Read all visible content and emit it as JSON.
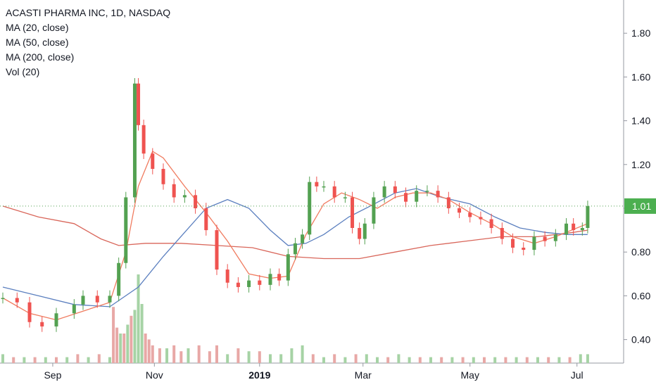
{
  "chart_data": {
    "type": "candlestick",
    "title": "ACASTI PHARMA INC, 1D, NASDAQ",
    "legend": [
      "MA (20, close)",
      "MA (50, close)",
      "MA (200, close)",
      "Vol (20)"
    ],
    "x_tick_labels": [
      "Sep",
      "Nov",
      "2019",
      "Mar",
      "May",
      "Jul"
    ],
    "y_tick_labels": [
      "1.80",
      "1.60",
      "1.40",
      "1.20",
      "1.00",
      "0.80",
      "0.60",
      "0.40"
    ],
    "y_ticks": [
      1.8,
      1.6,
      1.4,
      1.2,
      1.0,
      0.8,
      0.6,
      0.4
    ],
    "ylim": [
      0.3,
      1.95
    ],
    "last_price": "1.01",
    "last_price_value": 1.01,
    "grid": false,
    "legend_placement": "top-left",
    "colors": {
      "up": "#53a151",
      "down": "#ef5350",
      "ma20": "#f07b5f",
      "ma50": "#5b7fbf",
      "ma200": "#d9665a",
      "vol_up": "#a6d3a5",
      "vol_down": "#e8a8a6",
      "price_label_bg": "#4caf50"
    },
    "price_series_close": [
      [
        0,
        0.59
      ],
      [
        8,
        0.57
      ],
      [
        15,
        0.48
      ],
      [
        22,
        0.46
      ],
      [
        30,
        0.52
      ],
      [
        40,
        0.56
      ],
      [
        45,
        0.6
      ],
      [
        53,
        0.57
      ],
      [
        60,
        0.6
      ],
      [
        65,
        0.75
      ],
      [
        69,
        1.05
      ],
      [
        74,
        1.57
      ],
      [
        76,
        1.38
      ],
      [
        79,
        1.25
      ],
      [
        84,
        1.18
      ],
      [
        90,
        1.11
      ],
      [
        96,
        1.05
      ],
      [
        102,
        1.06
      ],
      [
        108,
        1.0
      ],
      [
        114,
        0.9
      ],
      [
        120,
        0.72
      ],
      [
        126,
        0.66
      ],
      [
        132,
        0.64
      ],
      [
        138,
        0.67
      ],
      [
        144,
        0.65
      ],
      [
        150,
        0.7
      ],
      [
        155,
        0.67
      ],
      [
        160,
        0.79
      ],
      [
        164,
        0.84
      ],
      [
        168,
        0.88
      ],
      [
        172,
        1.12
      ],
      [
        176,
        1.1
      ],
      [
        180,
        1.1
      ],
      [
        186,
        1.05
      ],
      [
        192,
        1.05
      ],
      [
        196,
        0.91
      ],
      [
        200,
        0.86
      ],
      [
        203,
        0.93
      ],
      [
        208,
        1.05
      ],
      [
        214,
        1.1
      ],
      [
        220,
        1.07
      ],
      [
        226,
        1.03
      ],
      [
        232,
        1.08
      ],
      [
        238,
        1.08
      ],
      [
        244,
        1.05
      ],
      [
        250,
        1.0
      ],
      [
        256,
        0.98
      ],
      [
        262,
        0.96
      ],
      [
        268,
        0.95
      ],
      [
        274,
        0.91
      ],
      [
        280,
        0.86
      ],
      [
        286,
        0.82
      ],
      [
        292,
        0.81
      ],
      [
        298,
        0.87
      ],
      [
        304,
        0.85
      ],
      [
        310,
        0.88
      ],
      [
        316,
        0.93
      ],
      [
        320,
        0.9
      ],
      [
        325,
        0.91
      ],
      [
        328,
        1.01
      ]
    ],
    "ma20": [
      [
        0,
        0.59
      ],
      [
        15,
        0.52
      ],
      [
        30,
        0.49
      ],
      [
        45,
        0.53
      ],
      [
        60,
        0.57
      ],
      [
        69,
        0.8
      ],
      [
        76,
        1.1
      ],
      [
        84,
        1.26
      ],
      [
        90,
        1.23
      ],
      [
        102,
        1.1
      ],
      [
        114,
        0.98
      ],
      [
        126,
        0.85
      ],
      [
        138,
        0.7
      ],
      [
        150,
        0.68
      ],
      [
        160,
        0.69
      ],
      [
        170,
        0.88
      ],
      [
        180,
        1.02
      ],
      [
        190,
        1.07
      ],
      [
        200,
        1.04
      ],
      [
        210,
        1.0
      ],
      [
        220,
        1.05
      ],
      [
        230,
        1.07
      ],
      [
        240,
        1.07
      ],
      [
        250,
        1.04
      ],
      [
        262,
        0.98
      ],
      [
        274,
        0.93
      ],
      [
        286,
        0.87
      ],
      [
        298,
        0.84
      ],
      [
        310,
        0.87
      ],
      [
        328,
        0.93
      ]
    ],
    "ma50": [
      [
        0,
        0.64
      ],
      [
        20,
        0.6
      ],
      [
        40,
        0.56
      ],
      [
        60,
        0.55
      ],
      [
        76,
        0.64
      ],
      [
        90,
        0.78
      ],
      [
        102,
        0.89
      ],
      [
        114,
        1.0
      ],
      [
        126,
        1.04
      ],
      [
        138,
        1.0
      ],
      [
        150,
        0.9
      ],
      [
        160,
        0.83
      ],
      [
        170,
        0.84
      ],
      [
        180,
        0.88
      ],
      [
        194,
        0.96
      ],
      [
        206,
        1.01
      ],
      [
        220,
        1.07
      ],
      [
        232,
        1.09
      ],
      [
        246,
        1.05
      ],
      [
        262,
        1.02
      ],
      [
        276,
        0.96
      ],
      [
        290,
        0.91
      ],
      [
        304,
        0.89
      ],
      [
        316,
        0.88
      ],
      [
        328,
        0.88
      ]
    ],
    "ma200": [
      [
        0,
        1.01
      ],
      [
        20,
        0.96
      ],
      [
        40,
        0.93
      ],
      [
        55,
        0.86
      ],
      [
        65,
        0.83
      ],
      [
        80,
        0.84
      ],
      [
        100,
        0.84
      ],
      [
        120,
        0.83
      ],
      [
        140,
        0.82
      ],
      [
        160,
        0.78
      ],
      [
        180,
        0.77
      ],
      [
        200,
        0.77
      ],
      [
        220,
        0.8
      ],
      [
        240,
        0.83
      ],
      [
        260,
        0.85
      ],
      [
        280,
        0.87
      ],
      [
        300,
        0.87
      ],
      [
        320,
        0.89
      ],
      [
        328,
        0.9
      ]
    ],
    "volume": [
      [
        0,
        0.03,
        "up"
      ],
      [
        6,
        0.02,
        "down"
      ],
      [
        12,
        0.02,
        "up"
      ],
      [
        18,
        0.02,
        "down"
      ],
      [
        24,
        0.02,
        "up"
      ],
      [
        30,
        0.02,
        "down"
      ],
      [
        36,
        0.02,
        "up"
      ],
      [
        42,
        0.03,
        "down"
      ],
      [
        48,
        0.02,
        "up"
      ],
      [
        54,
        0.03,
        "down"
      ],
      [
        60,
        0.02,
        "up"
      ],
      [
        62,
        0.19,
        "down"
      ],
      [
        64,
        0.12,
        "down"
      ],
      [
        66,
        0.1,
        "up"
      ],
      [
        68,
        0.1,
        "down"
      ],
      [
        70,
        0.13,
        "up"
      ],
      [
        72,
        0.16,
        "down"
      ],
      [
        74,
        0.18,
        "up"
      ],
      [
        76,
        0.3,
        "up"
      ],
      [
        78,
        0.2,
        "up"
      ],
      [
        80,
        0.1,
        "down"
      ],
      [
        82,
        0.08,
        "down"
      ],
      [
        84,
        0.06,
        "down"
      ],
      [
        88,
        0.05,
        "down"
      ],
      [
        92,
        0.05,
        "up"
      ],
      [
        96,
        0.06,
        "down"
      ],
      [
        100,
        0.04,
        "down"
      ],
      [
        104,
        0.05,
        "up"
      ],
      [
        110,
        0.06,
        "down"
      ],
      [
        116,
        0.04,
        "down"
      ],
      [
        120,
        0.06,
        "down"
      ],
      [
        126,
        0.03,
        "up"
      ],
      [
        132,
        0.05,
        "down"
      ],
      [
        138,
        0.04,
        "up"
      ],
      [
        144,
        0.04,
        "down"
      ],
      [
        150,
        0.03,
        "up"
      ],
      [
        156,
        0.03,
        "up"
      ],
      [
        162,
        0.05,
        "up"
      ],
      [
        168,
        0.06,
        "up"
      ],
      [
        174,
        0.03,
        "down"
      ],
      [
        180,
        0.02,
        "up"
      ],
      [
        186,
        0.03,
        "down"
      ],
      [
        192,
        0.02,
        "up"
      ],
      [
        198,
        0.03,
        "down"
      ],
      [
        204,
        0.03,
        "up"
      ],
      [
        210,
        0.02,
        "up"
      ],
      [
        216,
        0.02,
        "down"
      ],
      [
        222,
        0.03,
        "up"
      ],
      [
        228,
        0.02,
        "up"
      ],
      [
        234,
        0.02,
        "down"
      ],
      [
        240,
        0.02,
        "up"
      ],
      [
        246,
        0.02,
        "down"
      ],
      [
        252,
        0.02,
        "up"
      ],
      [
        258,
        0.02,
        "down"
      ],
      [
        264,
        0.02,
        "up"
      ],
      [
        270,
        0.02,
        "down"
      ],
      [
        276,
        0.02,
        "up"
      ],
      [
        282,
        0.02,
        "down"
      ],
      [
        288,
        0.02,
        "up"
      ],
      [
        294,
        0.02,
        "down"
      ],
      [
        300,
        0.02,
        "up"
      ],
      [
        306,
        0.02,
        "down"
      ],
      [
        312,
        0.02,
        "up"
      ],
      [
        318,
        0.02,
        "down"
      ],
      [
        324,
        0.03,
        "up"
      ],
      [
        328,
        0.03,
        "up"
      ]
    ]
  }
}
